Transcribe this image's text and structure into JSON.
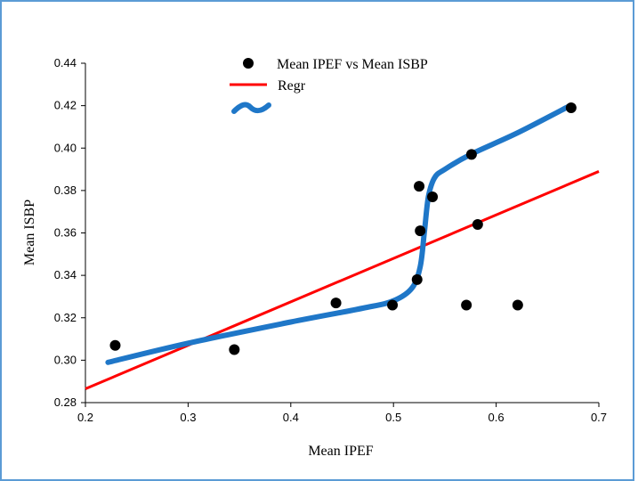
{
  "chart_data": {
    "type": "scatter",
    "xlabel": "Mean IPEF",
    "ylabel": "Mean ISBP",
    "xlim": [
      0.2,
      0.7
    ],
    "ylim": [
      0.28,
      0.44
    ],
    "x_ticks": [
      "0.2",
      "0.3",
      "0.4",
      "0.5",
      "0.6",
      "0.7"
    ],
    "y_ticks": [
      "0.28",
      "0.30",
      "0.32",
      "0.34",
      "0.36",
      "0.38",
      "0.40",
      "0.42",
      "0.44"
    ],
    "grid": false,
    "legend_position": "top-center",
    "legend": {
      "scatter_label": "Mean IPEF vs Mean ISBP",
      "regr_label": "Regr",
      "curve_label": "~"
    },
    "series": [
      {
        "name": "Mean IPEF vs Mean ISBP",
        "kind": "scatter",
        "color": "#000000",
        "points": [
          [
            0.229,
            0.307
          ],
          [
            0.345,
            0.305
          ],
          [
            0.444,
            0.327
          ],
          [
            0.499,
            0.326
          ],
          [
            0.523,
            0.338
          ],
          [
            0.525,
            0.382
          ],
          [
            0.526,
            0.361
          ],
          [
            0.538,
            0.377
          ],
          [
            0.571,
            0.326
          ],
          [
            0.576,
            0.397
          ],
          [
            0.582,
            0.364
          ],
          [
            0.621,
            0.326
          ],
          [
            0.673,
            0.419
          ]
        ]
      },
      {
        "name": "Regr",
        "kind": "line",
        "color": "#ff0000",
        "points": [
          [
            0.2,
            0.2865
          ],
          [
            0.7,
            0.389
          ]
        ]
      },
      {
        "name": "~",
        "kind": "curve",
        "color": "#1f77c8",
        "points": [
          [
            0.222,
            0.299
          ],
          [
            0.3,
            0.308
          ],
          [
            0.4,
            0.318
          ],
          [
            0.47,
            0.3245
          ],
          [
            0.5,
            0.328
          ],
          [
            0.518,
            0.334
          ],
          [
            0.526,
            0.344
          ],
          [
            0.53,
            0.36
          ],
          [
            0.534,
            0.377
          ],
          [
            0.54,
            0.386
          ],
          [
            0.55,
            0.39
          ],
          [
            0.575,
            0.397
          ],
          [
            0.62,
            0.407
          ],
          [
            0.672,
            0.42
          ]
        ]
      }
    ]
  }
}
